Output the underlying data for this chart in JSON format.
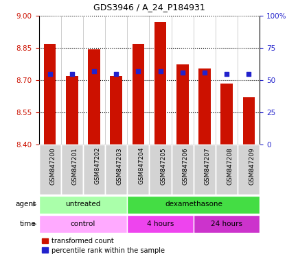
{
  "title": "GDS3946 / A_24_P184931",
  "samples": [
    "GSM847200",
    "GSM847201",
    "GSM847202",
    "GSM847203",
    "GSM847204",
    "GSM847205",
    "GSM847206",
    "GSM847207",
    "GSM847208",
    "GSM847209"
  ],
  "transformed_count": [
    8.87,
    8.72,
    8.845,
    8.72,
    8.87,
    8.97,
    8.775,
    8.755,
    8.685,
    8.62
  ],
  "percentile_rank": [
    55,
    55,
    57,
    55,
    57,
    57,
    56,
    56,
    55,
    55
  ],
  "ylim_left": [
    8.4,
    9.0
  ],
  "ylim_right": [
    0,
    100
  ],
  "yticks_left": [
    8.4,
    8.55,
    8.7,
    8.85,
    9.0
  ],
  "yticks_right": [
    0,
    25,
    50,
    75,
    100
  ],
  "ytick_labels_right": [
    "0",
    "25",
    "50",
    "75",
    "100%"
  ],
  "bar_color": "#cc1100",
  "dot_color": "#2222cc",
  "bar_bottom": 8.4,
  "agent_untreated_color": "#aaffaa",
  "agent_dex_color": "#44dd44",
  "time_control_color": "#ffaaff",
  "time_4h_color": "#ee44ee",
  "time_24h_color": "#cc33cc",
  "tick_label_color_left": "#cc1100",
  "tick_label_color_right": "#2222cc",
  "xtick_bg_color": "#cccccc",
  "grid_linestyle": "dotted",
  "bar_width": 0.55
}
